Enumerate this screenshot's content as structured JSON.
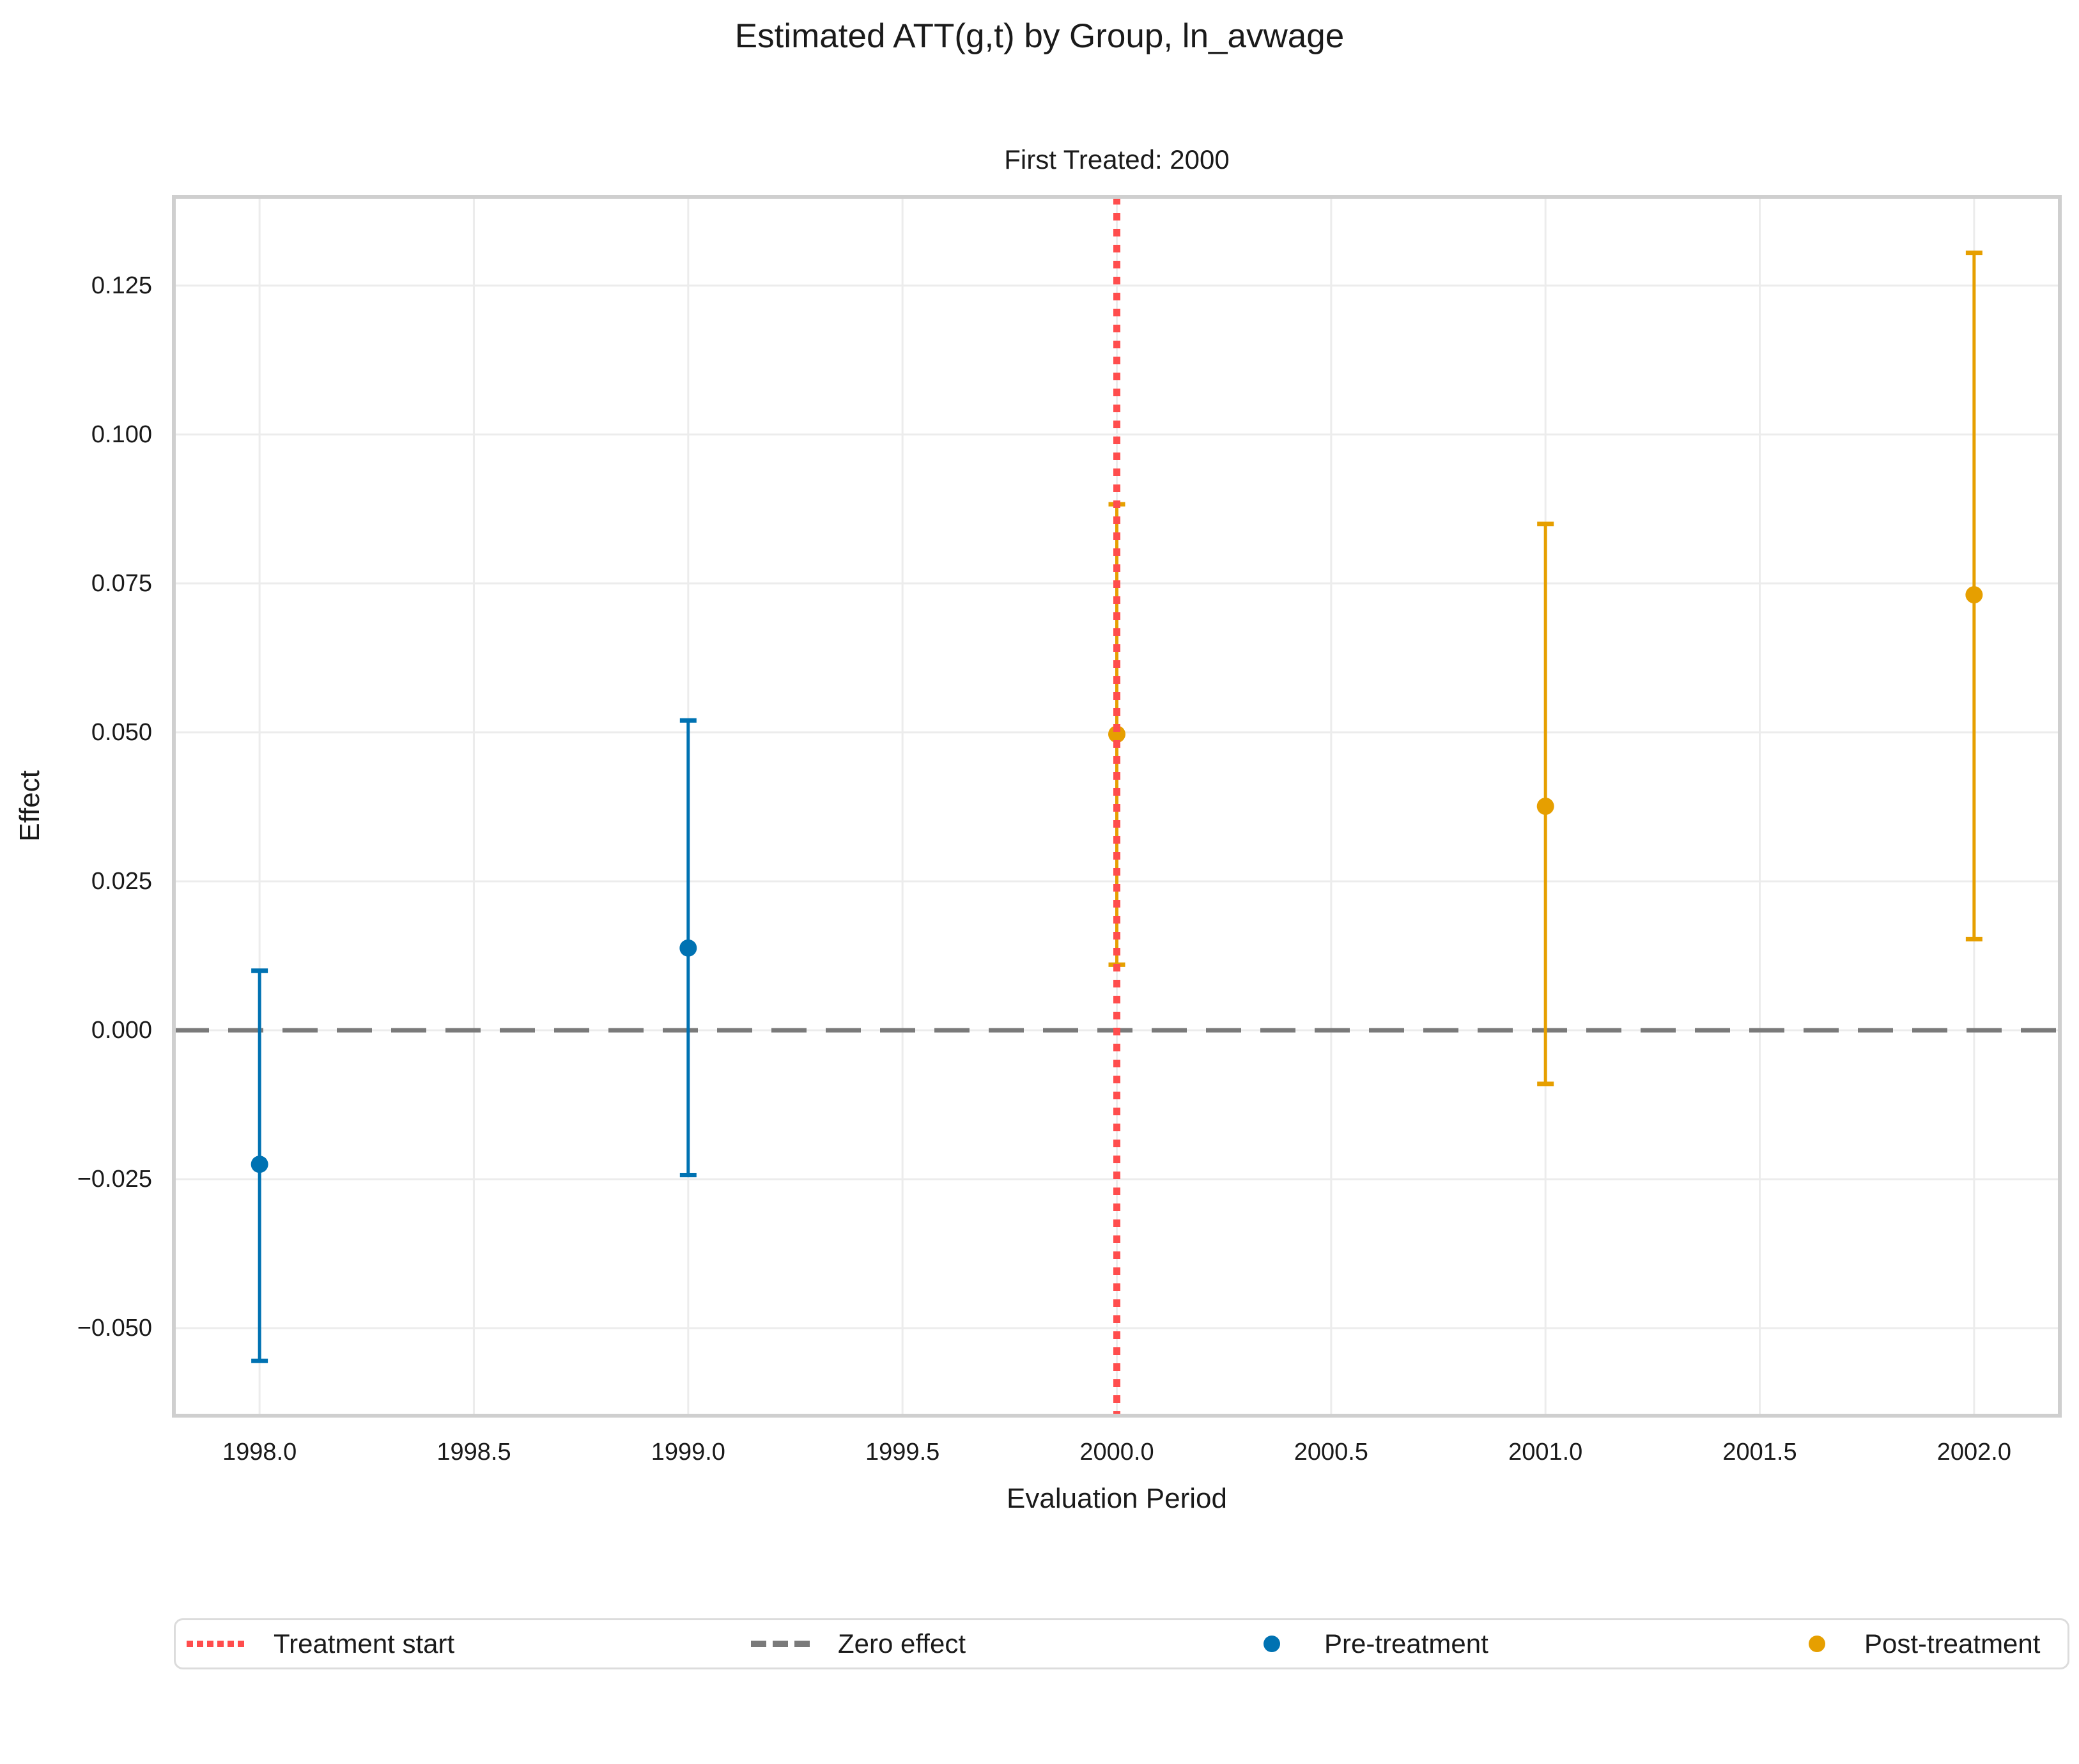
{
  "title": "Estimated ATT(g,t) by Group, ln_avwage",
  "subtitle": "First Treated: 2000",
  "axes": {
    "xlabel": "Evaluation Period",
    "ylabel": "Effect"
  },
  "legend": {
    "items": [
      {
        "label": "Treatment start",
        "swatch": "dotted-line",
        "color": "#ff4d4d"
      },
      {
        "label": "Zero effect",
        "swatch": "dashed-line",
        "color": "#7a7a7a"
      },
      {
        "label": "Pre-treatment",
        "swatch": "dot",
        "color": "#0072b2"
      },
      {
        "label": "Post-treatment",
        "swatch": "dot",
        "color": "#e69f00"
      }
    ]
  },
  "chart_data": {
    "type": "scatter",
    "title": "Estimated ATT(g,t) by Group, ln_avwage",
    "subtitle": "First Treated: 2000",
    "xlabel": "Evaluation Period",
    "ylabel": "Effect",
    "xlim": [
      1997.8,
      2002.2
    ],
    "ylim": [
      -0.0647,
      0.1399
    ],
    "x_ticks": [
      1998.0,
      1998.5,
      1999.0,
      1999.5,
      2000.0,
      2000.5,
      2001.0,
      2001.5,
      2002.0
    ],
    "x_tick_labels": [
      "1998.0",
      "1998.5",
      "1999.0",
      "1999.5",
      "2000.0",
      "2000.5",
      "2001.0",
      "2001.5",
      "2002.0"
    ],
    "y_ticks": [
      0.125,
      0.1,
      0.075,
      0.05,
      0.025,
      0.0,
      -0.025,
      -0.05
    ],
    "y_tick_labels": [
      "0.125",
      "0.100",
      "0.075",
      "0.050",
      "0.025",
      "0.000",
      "−0.025",
      "−0.050"
    ],
    "grid": true,
    "legend_position": "bottom",
    "treatment_start_x": 2000,
    "zero_effect_y": 0,
    "series": [
      {
        "name": "Pre-treatment",
        "color": "#0072b2",
        "points": [
          {
            "x": 1998,
            "y": -0.0225,
            "ci_low": -0.0555,
            "ci_high": 0.01
          },
          {
            "x": 1999,
            "y": 0.0138,
            "ci_low": -0.0243,
            "ci_high": 0.052
          }
        ]
      },
      {
        "name": "Post-treatment",
        "color": "#e69f00",
        "points": [
          {
            "x": 2000,
            "y": 0.0497,
            "ci_low": 0.011,
            "ci_high": 0.0883
          },
          {
            "x": 2001,
            "y": 0.0376,
            "ci_low": -0.009,
            "ci_high": 0.085
          },
          {
            "x": 2002,
            "y": 0.0731,
            "ci_low": 0.0153,
            "ci_high": 0.1305
          }
        ]
      }
    ],
    "style": {
      "gridline_color": "#ececec",
      "border_color": "#cfcfcf",
      "zero_line_color": "#7a7a7a",
      "treatment_line_color": "#ff4d4d",
      "text_color": "#1a1a1a"
    }
  }
}
